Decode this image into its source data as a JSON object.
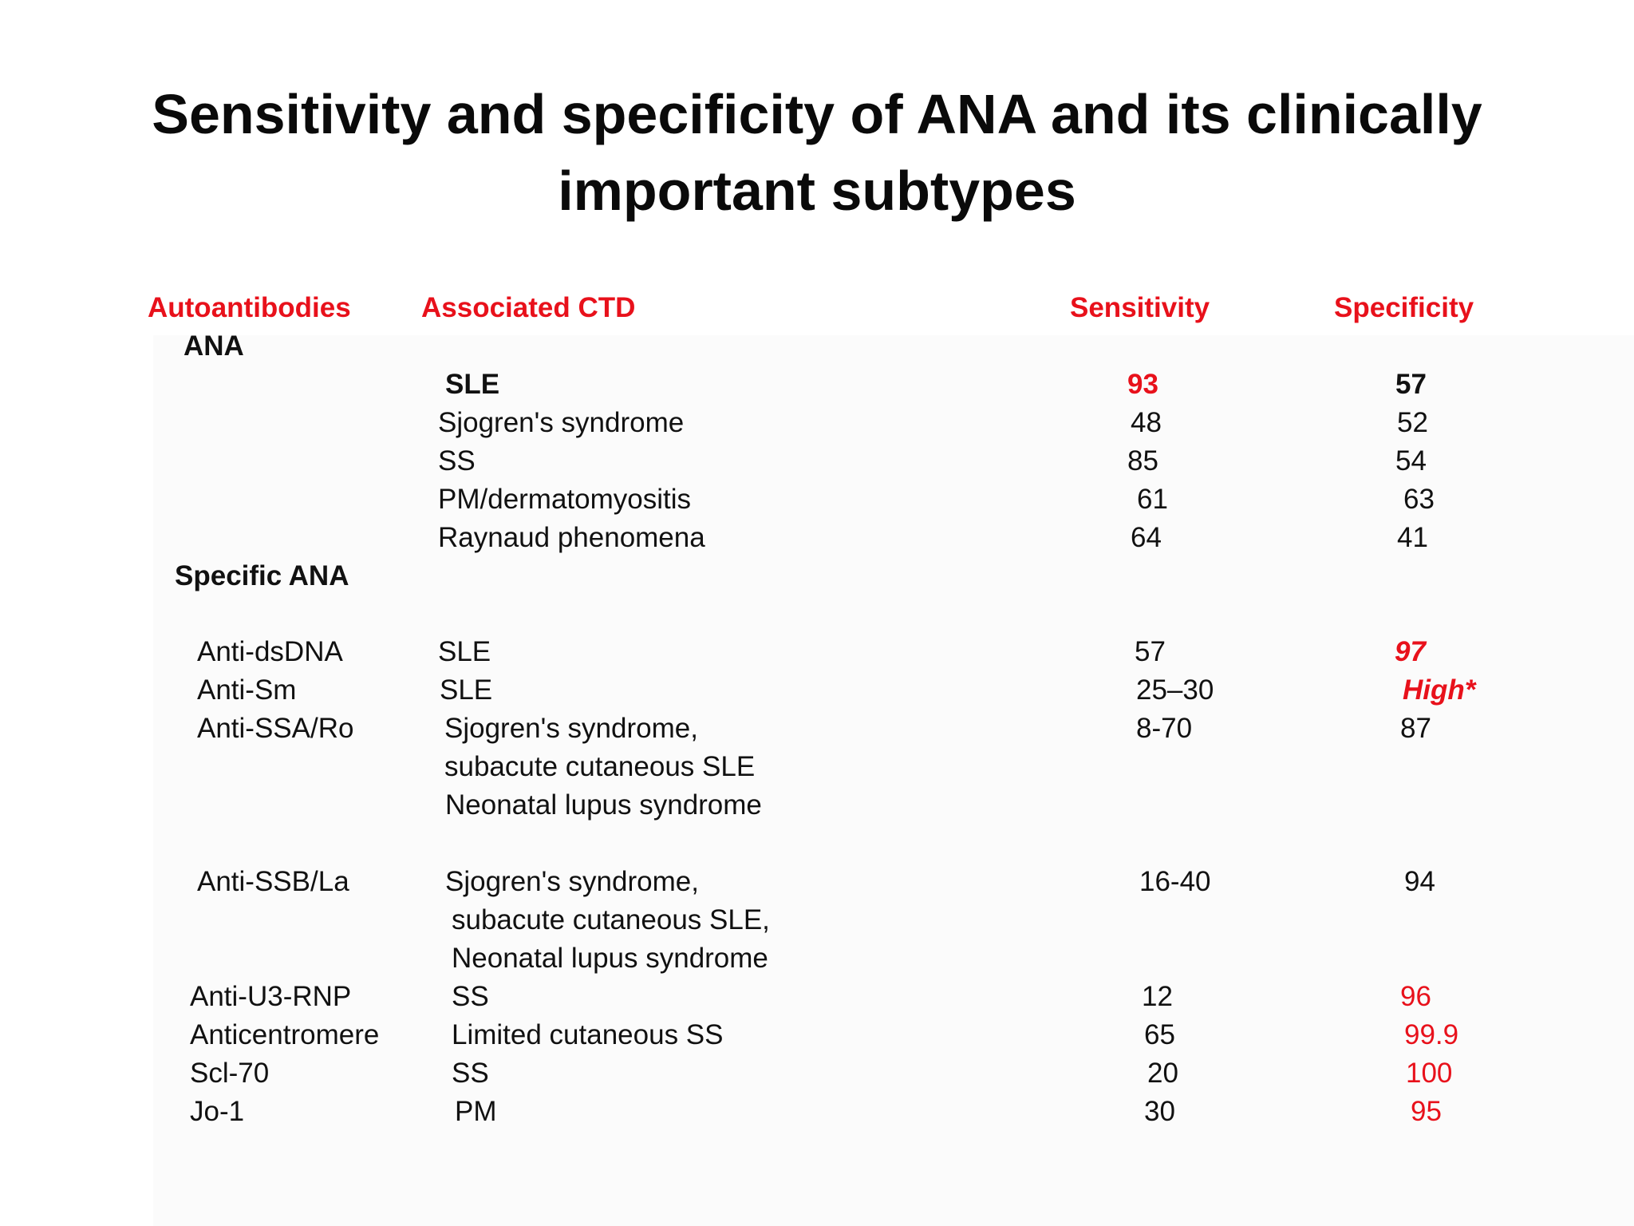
{
  "title": {
    "line1": "Sensitivity and specificity of ANA and its clinically",
    "line2": "important subtypes"
  },
  "headers": {
    "autoantibodies": "Autoantibodies",
    "associated_ctd": "Associated CTD",
    "sensitivity": "Sensitivity",
    "specificity": "Specificity"
  },
  "colors": {
    "accent_red": "#e8111b",
    "text": "#111111"
  },
  "ana": {
    "label": "ANA",
    "rows": [
      {
        "ctd": "SLE",
        "sensitivity": "93",
        "specificity": "57"
      },
      {
        "ctd": "Sjogren's syndrome",
        "sensitivity": "48",
        "specificity": "52"
      },
      {
        "ctd": "SS",
        "sensitivity": "85",
        "specificity": "54"
      },
      {
        "ctd": "PM/dermatomyositis",
        "sensitivity": "61",
        "specificity": "63"
      },
      {
        "ctd": "Raynaud phenomena",
        "sensitivity": "64",
        "specificity": "41"
      }
    ]
  },
  "specific_ana": {
    "label": "Specific ANA",
    "rows": [
      {
        "antibody": "Anti-dsDNA",
        "ctd": [
          "SLE"
        ],
        "sensitivity": "57",
        "specificity": "97"
      },
      {
        "antibody": "Anti-Sm",
        "ctd": [
          "SLE"
        ],
        "sensitivity": "25–30",
        "specificity": "High*"
      },
      {
        "antibody": "Anti-SSA/Ro",
        "ctd": [
          "Sjogren's syndrome,",
          "subacute cutaneous SLE",
          "Neonatal lupus syndrome"
        ],
        "sensitivity": "8-70",
        "specificity": "87"
      },
      {
        "antibody": "Anti-SSB/La",
        "ctd": [
          "Sjogren's syndrome,",
          "subacute cutaneous SLE,",
          "Neonatal lupus syndrome"
        ],
        "sensitivity": "16-40",
        "specificity": "94"
      },
      {
        "antibody": "Anti-U3-RNP",
        "ctd": [
          "SS"
        ],
        "sensitivity": "12",
        "specificity": "96"
      },
      {
        "antibody": "Anticentromere",
        "ctd": [
          "Limited cutaneous SS"
        ],
        "sensitivity": "65",
        "specificity": "99.9"
      },
      {
        "antibody": "Scl-70",
        "ctd": [
          "SS"
        ],
        "sensitivity": "20",
        "specificity": "100"
      },
      {
        "antibody": "Jo-1",
        "ctd": [
          "PM"
        ],
        "sensitivity": "30",
        "specificity": "95"
      }
    ]
  }
}
